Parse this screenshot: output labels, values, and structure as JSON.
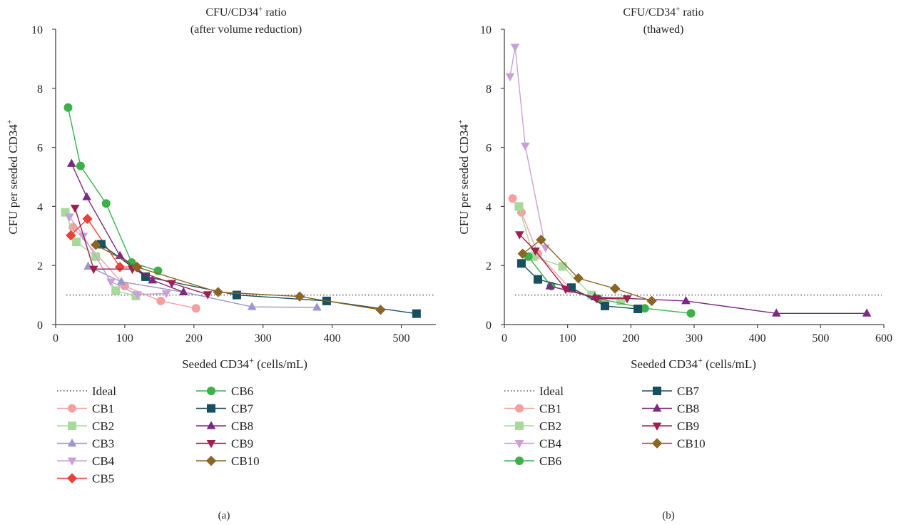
{
  "panels": [
    {
      "panel_label": "(a)",
      "title_line1": "CFU/CD34",
      "title_sup": "+",
      "title_line1_rest": " ratio",
      "title_line2": "(after volume reduction)",
      "ylabel_main": "CFU per seeded CD34",
      "ylabel_sup": "+",
      "xlabel_main": "Seeded CD34",
      "xlabel_sup": "+",
      "xlabel_rest": " (cells/mL)",
      "ideal_label": "Ideal"
    },
    {
      "panel_label": "(b)",
      "title_line1": "CFU/CD34",
      "title_sup": "+",
      "title_line1_rest": " ratio",
      "title_line2": "(thawed)",
      "ylabel_main": "CFU per seeded CD34",
      "ylabel_sup": "+",
      "xlabel_main": "Seeded CD34",
      "xlabel_sup": "+",
      "xlabel_rest": " (cells/mL)",
      "ideal_label": "Ideal"
    }
  ],
  "chart_data": [
    {
      "type": "line",
      "xlim": [
        0,
        550
      ],
      "ylim": [
        0,
        10
      ],
      "xticks": [
        0,
        100,
        200,
        300,
        400,
        500
      ],
      "yticks": [
        0,
        2,
        4,
        6,
        8,
        10
      ],
      "ideal": 1,
      "legend_columns": [
        [
          "Ideal",
          "CB1",
          "CB2",
          "CB3",
          "CB4",
          "CB5"
        ],
        [
          "CB6",
          "CB7",
          "CB8",
          "CB9",
          "CB10"
        ]
      ],
      "series": [
        {
          "name": "CB1",
          "color": "#f4a0a0",
          "marker": "circle",
          "x": [
            25,
            100,
            152,
            203
          ],
          "y": [
            3.3,
            1.3,
            0.8,
            0.55
          ]
        },
        {
          "name": "CB2",
          "color": "#a8d89a",
          "marker": "square",
          "x": [
            14,
            30,
            58,
            87,
            116
          ],
          "y": [
            3.8,
            2.8,
            2.3,
            1.15,
            0.97
          ]
        },
        {
          "name": "CB3",
          "color": "#9b97cf",
          "marker": "triangle-up",
          "x": [
            47,
            95,
            185,
            284,
            378
          ],
          "y": [
            1.97,
            1.45,
            1.1,
            0.6,
            0.58
          ]
        },
        {
          "name": "CB4",
          "color": "#c9a0d8",
          "marker": "triangle-down",
          "x": [
            20,
            40,
            80,
            118,
            160
          ],
          "y": [
            3.65,
            3.0,
            1.45,
            1.02,
            1.05
          ]
        },
        {
          "name": "CB5",
          "color": "#e8423a",
          "marker": "diamond",
          "x": [
            22,
            46,
            93,
            118
          ],
          "y": [
            3.02,
            3.58,
            1.95,
            1.95
          ]
        },
        {
          "name": "CB6",
          "color": "#3cb04a",
          "marker": "circle",
          "x": [
            18,
            36,
            73,
            110,
            148
          ],
          "y": [
            7.35,
            5.37,
            4.1,
            2.1,
            1.82
          ]
        },
        {
          "name": "CB7",
          "color": "#17505e",
          "marker": "square",
          "x": [
            66,
            130,
            262,
            392,
            522
          ],
          "y": [
            2.72,
            1.62,
            1.0,
            0.8,
            0.37
          ]
        },
        {
          "name": "CB8",
          "color": "#7a2a80",
          "marker": "triangle-up",
          "x": [
            23,
            45,
            93,
            140,
            185
          ],
          "y": [
            5.45,
            4.32,
            2.33,
            1.5,
            1.1
          ]
        },
        {
          "name": "CB9",
          "color": "#9c2050",
          "marker": "triangle-down",
          "x": [
            28,
            55,
            111,
            168,
            220
          ],
          "y": [
            3.95,
            1.88,
            1.88,
            1.4,
            1.02
          ]
        },
        {
          "name": "CB10",
          "color": "#8a6525",
          "marker": "diamond",
          "x": [
            58,
            117,
            235,
            353,
            470
          ],
          "y": [
            2.7,
            1.95,
            1.1,
            0.95,
            0.5
          ]
        }
      ]
    },
    {
      "type": "line",
      "xlim": [
        0,
        600
      ],
      "ylim": [
        0,
        10
      ],
      "xticks": [
        0,
        100,
        200,
        300,
        400,
        500,
        600
      ],
      "yticks": [
        0,
        2,
        4,
        6,
        8,
        10
      ],
      "ideal": 1,
      "legend_columns": [
        [
          "Ideal",
          "CB1",
          "CB2",
          "CB4",
          "CB6"
        ],
        [
          "CB7",
          "CB8",
          "CB9",
          "CB10"
        ]
      ],
      "series": [
        {
          "name": "CB1",
          "color": "#f4a0a0",
          "marker": "circle",
          "x": [
            13,
            27,
            53,
            105,
            157
          ],
          "y": [
            4.27,
            3.8,
            2.4,
            1.2,
            0.78
          ]
        },
        {
          "name": "CB2",
          "color": "#a8d89a",
          "marker": "square",
          "x": [
            23,
            46,
            92,
            138,
            184
          ],
          "y": [
            4.0,
            2.3,
            1.97,
            1.0,
            0.8
          ]
        },
        {
          "name": "CB4",
          "color": "#c9a0d8",
          "marker": "triangle-down",
          "x": [
            9,
            17,
            33,
            65
          ],
          "y": [
            8.4,
            9.4,
            6.05,
            2.6
          ]
        },
        {
          "name": "CB6",
          "color": "#3cb04a",
          "marker": "circle",
          "x": [
            38,
            74,
            148,
            222,
            295
          ],
          "y": [
            2.3,
            1.3,
            0.88,
            0.55,
            0.38
          ]
        },
        {
          "name": "CB7",
          "color": "#17505e",
          "marker": "square",
          "x": [
            27,
            53,
            106,
            159,
            211
          ],
          "y": [
            2.07,
            1.53,
            1.25,
            0.63,
            0.53
          ]
        },
        {
          "name": "CB8",
          "color": "#7a2a80",
          "marker": "triangle-up",
          "x": [
            72,
            143,
            287,
            430,
            573
          ],
          "y": [
            1.3,
            0.93,
            0.8,
            0.38,
            0.38
          ]
        },
        {
          "name": "CB9",
          "color": "#9c2050",
          "marker": "triangle-down",
          "x": [
            24,
            49,
            97,
            146,
            194
          ],
          "y": [
            3.05,
            2.5,
            1.2,
            0.88,
            0.88
          ]
        },
        {
          "name": "CB10",
          "color": "#8a6525",
          "marker": "diamond",
          "x": [
            29,
            58,
            117,
            175,
            233
          ],
          "y": [
            2.4,
            2.87,
            1.57,
            1.22,
            0.8
          ]
        }
      ]
    }
  ]
}
